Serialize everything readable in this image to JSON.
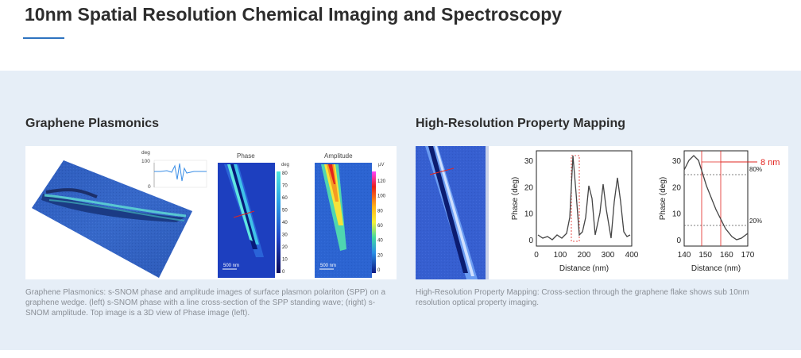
{
  "header": {
    "title": "10nm Spatial Resolution Chemical Imaging and Spectroscopy"
  },
  "cards": [
    {
      "title": "Graphene Plasmonics",
      "caption": "Graphene Plasmonics: s-SNOM phase and amplitude images of surface plasmon polariton (SPP) on a graphene wedge. (left) s-SNOM phase with a line cross-section of the SPP standing wave; (right) s-SNOM amplitude. Top image is a 3D view of Phase image (left).",
      "figure": {
        "inset_unit": "deg",
        "inset_max": "100",
        "inset_min": "0",
        "phase_label": "Phase",
        "amplitude_label": "Amplitude",
        "phase_scalebar": "500 nm",
        "amplitude_scalebar": "500 nm",
        "phase_colorbar_unit": "deg",
        "phase_colorbar_ticks": [
          "80",
          "70",
          "60",
          "50",
          "40",
          "30",
          "20",
          "10",
          "0"
        ],
        "amplitude_colorbar_unit": "µV",
        "amplitude_colorbar_ticks": [
          "120",
          "100",
          "80",
          "60",
          "40",
          "20",
          "0"
        ]
      }
    },
    {
      "title": "High-Resolution Property Mapping",
      "caption": "High-Resolution Property Mapping: Cross-section through the graphene flake shows sub 10nm resolution optical property imaging.",
      "figure": {
        "plot1_ylabel": "Phase (deg)",
        "plot1_xlabel": "Distance (nm)",
        "plot1_xticks": [
          "0",
          "100",
          "200",
          "300",
          "400"
        ],
        "plot1_yticks": [
          "30",
          "20",
          "10",
          "0"
        ],
        "plot2_ylabel": "Phase (deg)",
        "plot2_xlabel": "Distance (nm)",
        "plot2_xticks": [
          "140",
          "150",
          "160",
          "170"
        ],
        "plot2_yticks": [
          "30",
          "20",
          "10",
          "0"
        ],
        "plot2_ref_high": "80%",
        "plot2_ref_low": "20%",
        "plot2_resolution": "8 nm"
      }
    }
  ],
  "colors": {
    "accent": "#2e73c0",
    "band": "#e6eef7",
    "marker": "#e2241f"
  }
}
